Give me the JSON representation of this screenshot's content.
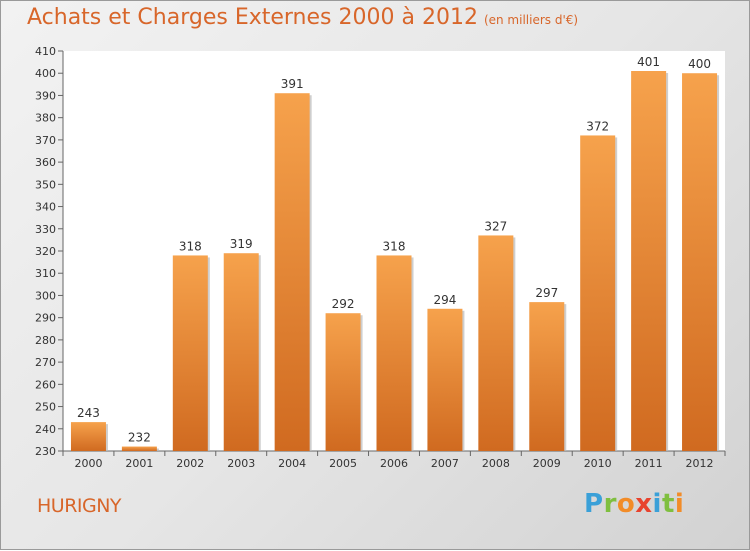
{
  "title": "Achats et Charges Externes 2000 à 2012",
  "subtitle": "(en milliers d'€)",
  "commune": "HURIGNY",
  "logo": {
    "text": "Proxiti",
    "letters": [
      "P",
      "r",
      "o",
      "x",
      "i",
      "t",
      "i"
    ],
    "colors": [
      "#3aa0d8",
      "#7fbf3f",
      "#f28c28",
      "#e8432e",
      "#3aa0d8",
      "#7fbf3f",
      "#f28c28"
    ]
  },
  "colors": {
    "accent": "#d8662a",
    "bar_top": "#f6a24c",
    "bar_bottom": "#d06a20"
  },
  "chart_data": {
    "type": "bar",
    "title": "Achats et Charges Externes 2000 à 2012",
    "subtitle": "(en milliers d'€)",
    "categories": [
      "2000",
      "2001",
      "2002",
      "2003",
      "2004",
      "2005",
      "2006",
      "2007",
      "2008",
      "2009",
      "2010",
      "2011",
      "2012"
    ],
    "values": [
      243,
      232,
      318,
      319,
      391,
      292,
      318,
      294,
      327,
      297,
      372,
      401,
      400
    ],
    "ylim": [
      230,
      410
    ],
    "yticks": [
      230,
      240,
      250,
      260,
      270,
      280,
      290,
      300,
      310,
      320,
      330,
      340,
      350,
      360,
      370,
      380,
      390,
      400,
      410
    ],
    "grid": false,
    "data_labels": true
  }
}
